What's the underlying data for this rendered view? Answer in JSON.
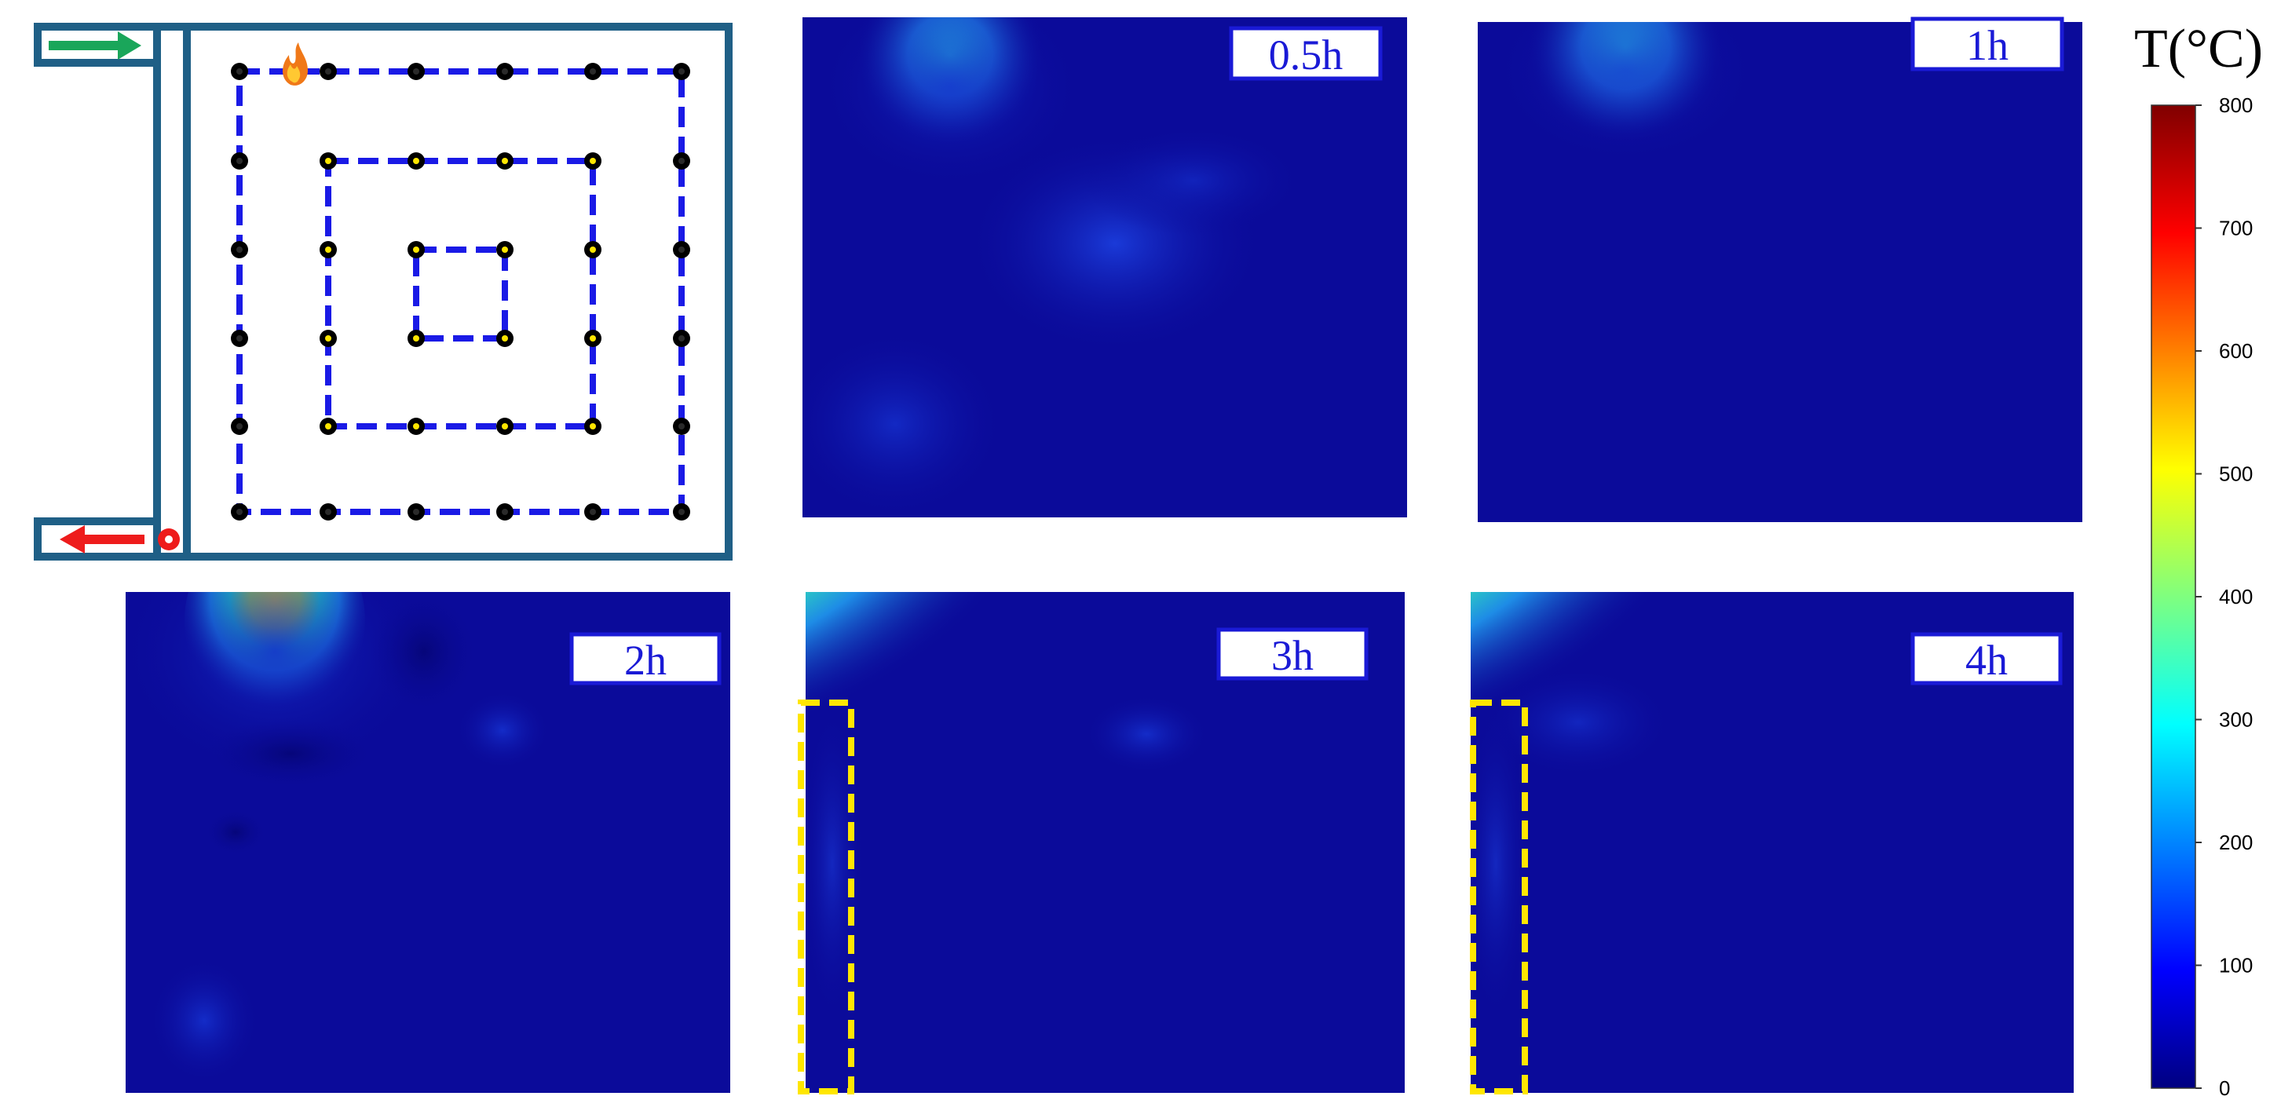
{
  "figure": {
    "panels": [
      {
        "id": "p05",
        "label": "0.5h"
      },
      {
        "id": "p1",
        "label": "1h"
      },
      {
        "id": "p2",
        "label": "2h"
      },
      {
        "id": "p3",
        "label": "3h"
      },
      {
        "id": "p4",
        "label": "4h"
      }
    ],
    "colorbar": {
      "title": "T(°C)",
      "min": 0,
      "max": 800,
      "ticks": [
        "0",
        "100",
        "200",
        "300",
        "400",
        "500",
        "600",
        "700",
        "800"
      ],
      "colormap": "jet"
    },
    "layout_schematic": {
      "fire_marker": "fire-icon",
      "inlet_arrow": "arrow-right-icon",
      "outlet_arrow": "arrow-left-icon"
    },
    "colors": {
      "frame": "#1f5f86",
      "loop_dash": "#1a1ae6",
      "background_field": "#0b0b9a",
      "highlight_box": "#ffe600",
      "inlet_arrow": "#1aa65a",
      "outlet_arrow": "#ee1c1c",
      "label_text": "#1a1ad6"
    }
  }
}
